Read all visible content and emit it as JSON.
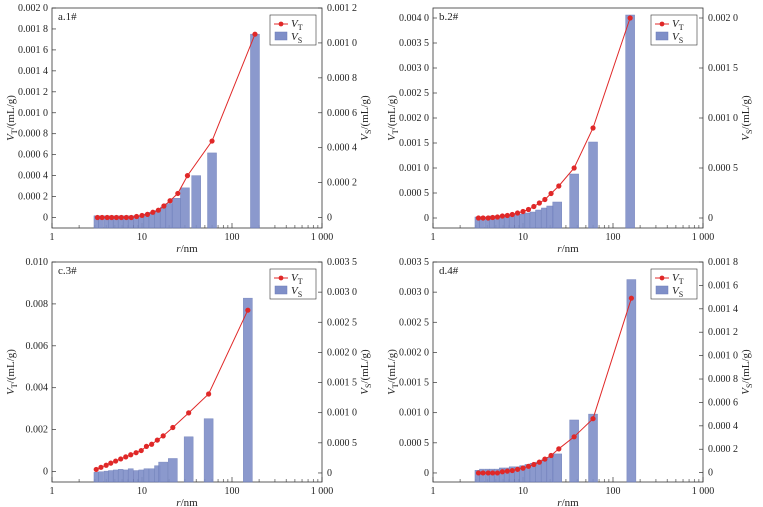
{
  "chart_data": [
    {
      "type": "bar",
      "panel_label": "a.1#",
      "x_label": "r/nm",
      "y_left_label": "V_T/(mL/g)",
      "y_right_label": "V_S/(mL/g)",
      "legend": {
        "line": "V_T",
        "bar": "V_S",
        "placement": "top-right"
      },
      "x_scale": "log",
      "x_range": [
        1,
        1000
      ],
      "x_ticks": [
        1,
        10,
        100,
        1000
      ],
      "x_tick_labels": [
        "1",
        "10",
        "100",
        "1 000"
      ],
      "y_left_range": [
        -0.0001,
        0.002
      ],
      "y_left_ticks": [
        0,
        0.0002,
        0.0004,
        0.0006,
        0.0008,
        0.001,
        0.0012,
        0.0014,
        0.0016,
        0.0018,
        0.002
      ],
      "y_left_tick_labels": [
        "0",
        "0.000 2",
        "0.000 4",
        "0.000 6",
        "0.000 8",
        "0.001 0",
        "0.001 2",
        "0.001 4",
        "0.001 6",
        "0.001 8",
        "0.002 0"
      ],
      "y_right_range": [
        -6e-05,
        0.0012
      ],
      "y_right_ticks": [
        0,
        0.0002,
        0.0004,
        0.0006,
        0.0008,
        0.001,
        0.0012
      ],
      "y_right_tick_labels": [
        "0",
        "0.000 2",
        "0.000 4",
        "0.000 6",
        "0.000 8",
        "0.001 0",
        "0.001 2"
      ],
      "bars": {
        "name": "V_S",
        "x": [
          3.1,
          3.5,
          4.0,
          4.5,
          5.1,
          5.8,
          6.6,
          7.5,
          8.6,
          9.8,
          11.2,
          12.8,
          14.8,
          17.2,
          20,
          24,
          30,
          40,
          60,
          180
        ],
        "y": [
          1e-05,
          1e-05,
          1e-05,
          1e-05,
          1e-05,
          1e-05,
          1e-05,
          1e-05,
          1e-05,
          1e-05,
          2e-05,
          3e-05,
          4e-05,
          6e-05,
          8e-05,
          0.00011,
          0.00017,
          0.00024,
          0.00037,
          0.00105
        ]
      },
      "line": {
        "name": "V_T",
        "x": [
          3.2,
          3.6,
          4.1,
          4.6,
          5.2,
          5.9,
          6.7,
          7.6,
          8.7,
          10,
          11.5,
          13.2,
          15.2,
          17.5,
          20.5,
          25,
          32,
          60,
          180
        ],
        "y": [
          0,
          0,
          0,
          0,
          0,
          0,
          0,
          0,
          1e-05,
          2e-05,
          3e-05,
          5e-05,
          7e-05,
          0.00011,
          0.00016,
          0.00023,
          0.0004,
          0.00073,
          0.00175
        ]
      }
    },
    {
      "type": "bar",
      "panel_label": "b.2#",
      "x_label": "r/nm",
      "y_left_label": "V_T/(mL/g)",
      "y_right_label": "V_S/(mL/g)",
      "legend": {
        "line": "V_T",
        "bar": "V_S",
        "placement": "top-right"
      },
      "x_scale": "log",
      "x_range": [
        1,
        1000
      ],
      "x_ticks": [
        1,
        10,
        100,
        1000
      ],
      "x_tick_labels": [
        "1",
        "10",
        "100",
        "1 000"
      ],
      "y_left_range": [
        -0.0002,
        0.0042
      ],
      "y_left_ticks": [
        0,
        0.0005,
        0.001,
        0.0015,
        0.002,
        0.0025,
        0.003,
        0.0035,
        0.004
      ],
      "y_left_tick_labels": [
        "0",
        "0.000 5",
        "0.001 0",
        "0.001 5",
        "0.002 0",
        "0.002 5",
        "0.003 0",
        "0.003 5",
        "0.004 0"
      ],
      "y_right_range": [
        -0.0001,
        0.0021
      ],
      "y_right_ticks": [
        0,
        0.0005,
        0.001,
        0.0015,
        0.002
      ],
      "y_right_tick_labels": [
        "0",
        "0.000 5",
        "0.001 0",
        "0.001 5",
        "0.002 0"
      ],
      "bars": {
        "name": "V_S",
        "x": [
          3.1,
          3.5,
          4.0,
          4.5,
          5.1,
          5.8,
          6.6,
          7.5,
          8.6,
          9.8,
          11.2,
          12.8,
          14.8,
          17.2,
          20,
          24,
          37,
          60,
          155
        ],
        "y": [
          1e-05,
          1e-05,
          1e-05,
          2e-05,
          2e-05,
          2e-05,
          3e-05,
          3e-05,
          4e-05,
          4e-05,
          5e-05,
          6e-05,
          8e-05,
          0.0001,
          0.00012,
          0.00016,
          0.00044,
          0.00076,
          0.00203
        ]
      },
      "line": {
        "name": "V_T",
        "x": [
          3.2,
          3.6,
          4.1,
          4.6,
          5.2,
          5.9,
          6.7,
          7.6,
          8.7,
          10,
          11.5,
          13.2,
          15.2,
          17.5,
          20.5,
          25,
          37,
          60,
          155
        ],
        "y": [
          0,
          0,
          0,
          1e-05,
          2e-05,
          4e-05,
          5e-05,
          7e-05,
          0.0001,
          0.00013,
          0.00017,
          0.00023,
          0.0003,
          0.00037,
          0.00049,
          0.00064,
          0.001,
          0.0018,
          0.004
        ]
      }
    },
    {
      "type": "bar",
      "panel_label": "c.3#",
      "x_label": "r/nm",
      "y_left_label": "V_T/(mL/g)",
      "y_right_label": "V_S/(mL/g)",
      "legend": {
        "line": "V_T",
        "bar": "V_S",
        "placement": "top-right"
      },
      "x_scale": "log",
      "x_range": [
        1,
        1000
      ],
      "x_ticks": [
        1,
        10,
        100,
        1000
      ],
      "x_tick_labels": [
        "1",
        "10",
        "100",
        "1 000"
      ],
      "y_left_range": [
        -0.0005,
        0.01
      ],
      "y_left_ticks": [
        0,
        0.002,
        0.004,
        0.006,
        0.008,
        0.01
      ],
      "y_left_tick_labels": [
        "0",
        "0.002",
        "0.004",
        "0.006",
        "0.008",
        "0.010"
      ],
      "y_right_range": [
        -0.00015,
        0.0035
      ],
      "y_right_ticks": [
        0,
        0.0005,
        0.001,
        0.0015,
        0.002,
        0.0025,
        0.003,
        0.0035
      ],
      "y_right_tick_labels": [
        "0",
        "0.000 5",
        "0.001 0",
        "0.001 5",
        "0.002 0",
        "0.002 5",
        "0.003 0",
        "0.003 5"
      ],
      "bars": {
        "name": "V_S",
        "x": [
          3.1,
          3.5,
          4.0,
          4.5,
          5.1,
          5.8,
          6.6,
          7.5,
          8.6,
          9.8,
          11.2,
          12.8,
          14.8,
          17.2,
          22,
          33,
          55,
          150
        ],
        "y": [
          1e-05,
          2e-05,
          3e-05,
          4e-05,
          5e-05,
          6e-05,
          5e-05,
          7e-05,
          4e-05,
          5e-05,
          7e-05,
          7e-05,
          0.00012,
          0.00018,
          0.00024,
          0.0006,
          0.0009,
          0.0029
        ]
      },
      "line": {
        "name": "V_T",
        "x": [
          3.1,
          3.5,
          4.0,
          4.5,
          5.1,
          5.8,
          6.6,
          7.5,
          8.6,
          9.8,
          11.2,
          12.8,
          14.8,
          17.2,
          22,
          33,
          55,
          150
        ],
        "y": [
          0.0001,
          0.0002,
          0.0003,
          0.0004,
          0.0005,
          0.0006,
          0.0007,
          0.0008,
          0.0009,
          0.001,
          0.0012,
          0.0013,
          0.0015,
          0.0017,
          0.0021,
          0.0028,
          0.0037,
          0.0077
        ]
      }
    },
    {
      "type": "bar",
      "panel_label": "d.4#",
      "x_label": "r/nm",
      "y_left_label": "V_T/(mL/g)",
      "y_right_label": "V_S/(mL/g)",
      "legend": {
        "line": "V_T",
        "bar": "V_S",
        "placement": "top-right"
      },
      "x_scale": "log",
      "x_range": [
        1,
        1000
      ],
      "x_ticks": [
        1,
        10,
        100,
        1000
      ],
      "x_tick_labels": [
        "1",
        "10",
        "100",
        "1 000"
      ],
      "y_left_range": [
        -0.00015,
        0.0035
      ],
      "y_left_ticks": [
        0,
        0.0005,
        0.001,
        0.0015,
        0.002,
        0.0025,
        0.003,
        0.0035
      ],
      "y_left_tick_labels": [
        "0",
        "0.000 5",
        "0.001 0",
        "0.001 5",
        "0.002 0",
        "0.002 5",
        "0.003 0",
        "0.003 5"
      ],
      "y_right_range": [
        -8e-05,
        0.0018
      ],
      "y_right_ticks": [
        0,
        0.0002,
        0.0004,
        0.0006,
        0.0008,
        0.001,
        0.0012,
        0.0014,
        0.0016,
        0.0018
      ],
      "y_right_tick_labels": [
        "0",
        "0.000 2",
        "0.000 4",
        "0.000 6",
        "0.000 8",
        "0.001 0",
        "0.001 2",
        "0.001 4",
        "0.001 6",
        "0.001 8"
      ],
      "bars": {
        "name": "V_S",
        "x": [
          3.1,
          3.5,
          4.0,
          4.5,
          5.1,
          5.8,
          6.6,
          7.5,
          8.6,
          9.8,
          11.2,
          12.8,
          14.8,
          17.2,
          20,
          24,
          37,
          60,
          160
        ],
        "y": [
          2e-05,
          3e-05,
          3e-05,
          3e-05,
          3e-05,
          4e-05,
          4e-05,
          5e-05,
          5e-05,
          6e-05,
          7e-05,
          8e-05,
          9e-05,
          0.00011,
          0.00013,
          0.00016,
          0.00045,
          0.0005,
          0.00165
        ]
      },
      "line": {
        "name": "V_T",
        "x": [
          3.2,
          3.6,
          4.1,
          4.6,
          5.2,
          5.9,
          6.7,
          7.6,
          8.7,
          10,
          11.5,
          13.2,
          15.2,
          17.5,
          20.5,
          25,
          37,
          60,
          160
        ],
        "y": [
          0,
          0,
          0,
          0,
          0,
          2e-05,
          3e-05,
          4e-05,
          6e-05,
          8e-05,
          0.00011,
          0.00014,
          0.00018,
          0.00023,
          0.00029,
          0.0004,
          0.0006,
          0.0009,
          0.0029
        ]
      }
    }
  ]
}
